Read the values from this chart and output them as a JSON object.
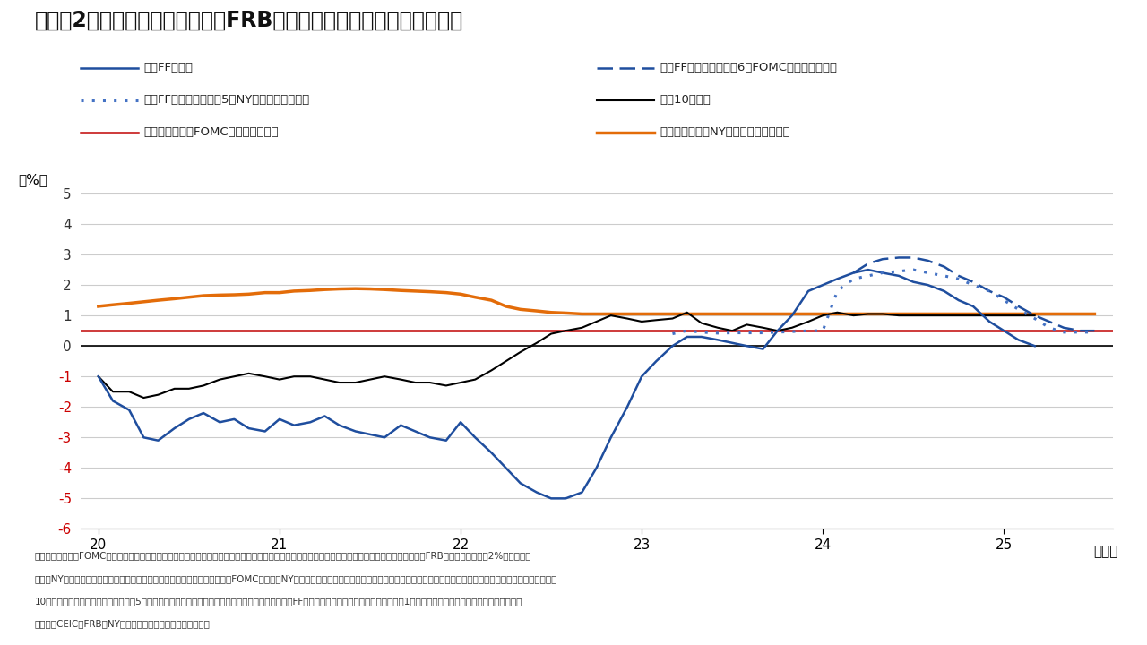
{
  "title": "（図表2）米国：主要長短金利とFRBが見通す中立金利（実質ベース）",
  "ylabel": "（%）",
  "xlabel_year": "（年）",
  "ylim": [
    -6,
    5
  ],
  "xlim": [
    19.9,
    25.6
  ],
  "yticks": [
    -6,
    -5,
    -4,
    -3,
    -2,
    -1,
    0,
    1,
    2,
    3,
    4,
    5
  ],
  "xticks": [
    20,
    21,
    22,
    23,
    24,
    25
  ],
  "note1": "（注）中立金利はFOMC参加者が公表する長期見通しの水準と、直近の見通しが今後も変化しないとの前提を置いた。実質中立金利は、中立金利から、FRBのインフレ目標（2%）を引いた",
  "note2": "計数。NY連銀調査は、プライマリー・ディーラー向けの調査結果に基づく。FOMC参加者やNY連銀調査による見通しで公表されてない期間についてはインベスコが一定の前提を置いて補完した。実質",
  "note3": "10年金利は、ミシガン大学調査による5年先までの期待インフレ率でデフレートして算出した。実質FFレートについては、ミシガン大学による1年先の期待インフレ率を使用して算出した。",
  "note4": "（出所）CEIC、FRB、NY連銀、ブルームバーグ、インベスコ",
  "legend": [
    {
      "label": "実質FFレート",
      "color": "#1f4e9e",
      "linestyle": "solid",
      "lw": 1.8
    },
    {
      "label": "実質FFレート見通し（6月FOMC見通しに準拠）",
      "color": "#1f4e9e",
      "linestyle": "dashed",
      "lw": 1.8
    },
    {
      "label": "実質FFレート見通し（5月NY連銀調査に準拠）",
      "color": "#4472c4",
      "linestyle": "dotted",
      "lw": 2.2
    },
    {
      "label": "実質10年金利",
      "color": "#000000",
      "linestyle": "solid",
      "lw": 1.5
    },
    {
      "label": "実質中立金利（FOMC参加者の見解）",
      "color": "#c00000",
      "linestyle": "solid",
      "lw": 1.8
    },
    {
      "label": "実質中立金利（NY連銀による推計値）",
      "color": "#e36c09",
      "linestyle": "solid",
      "lw": 2.5
    }
  ],
  "real_ff": {
    "x": [
      20.0,
      20.08,
      20.17,
      20.25,
      20.33,
      20.42,
      20.5,
      20.58,
      20.67,
      20.75,
      20.83,
      20.92,
      21.0,
      21.08,
      21.17,
      21.25,
      21.33,
      21.42,
      21.5,
      21.58,
      21.67,
      21.75,
      21.83,
      21.92,
      22.0,
      22.08,
      22.17,
      22.25,
      22.33,
      22.42,
      22.5,
      22.58,
      22.67,
      22.75,
      22.83,
      22.92,
      23.0,
      23.08,
      23.17,
      23.25,
      23.33,
      23.42,
      23.5,
      23.58,
      23.67,
      23.75,
      23.83,
      23.92,
      24.0,
      24.08,
      24.17,
      24.25,
      24.33,
      24.42,
      24.5,
      24.58,
      24.67,
      24.75,
      24.83,
      24.92,
      25.0,
      25.08,
      25.17
    ],
    "y": [
      -1.0,
      -1.8,
      -2.1,
      -3.0,
      -3.1,
      -2.7,
      -2.4,
      -2.2,
      -2.5,
      -2.4,
      -2.7,
      -2.8,
      -2.4,
      -2.6,
      -2.5,
      -2.3,
      -2.6,
      -2.8,
      -2.9,
      -3.0,
      -2.6,
      -2.8,
      -3.0,
      -3.1,
      -2.5,
      -3.0,
      -3.5,
      -4.0,
      -4.5,
      -4.8,
      -5.0,
      -5.0,
      -4.8,
      -4.0,
      -3.0,
      -2.0,
      -1.0,
      -0.5,
      0.0,
      0.3,
      0.3,
      0.2,
      0.1,
      0.0,
      -0.1,
      0.5,
      1.0,
      1.8,
      2.0,
      2.2,
      2.4,
      2.5,
      2.4,
      2.3,
      2.1,
      2.0,
      1.8,
      1.5,
      1.3,
      0.8,
      0.5,
      0.2,
      0.0
    ]
  },
  "real_ff_june_fomc": {
    "x": [
      24.17,
      24.25,
      24.33,
      24.42,
      24.5,
      24.58,
      24.67,
      24.75,
      24.83,
      24.92,
      25.0,
      25.08,
      25.17,
      25.25,
      25.33,
      25.42,
      25.5
    ],
    "y": [
      2.4,
      2.7,
      2.85,
      2.9,
      2.9,
      2.8,
      2.6,
      2.3,
      2.1,
      1.8,
      1.6,
      1.3,
      1.0,
      0.8,
      0.6,
      0.5,
      0.5
    ]
  },
  "real_ff_may_ny": {
    "x": [
      23.17,
      23.25,
      23.33,
      23.42,
      23.5,
      23.58,
      23.67,
      23.75,
      23.83,
      23.92,
      24.0,
      24.08,
      24.17,
      24.25,
      24.33,
      24.42,
      24.5,
      24.58,
      24.67,
      24.75,
      24.83,
      24.92,
      25.0,
      25.08,
      25.17,
      25.25,
      25.33,
      25.42,
      25.5
    ],
    "y": [
      0.4,
      0.5,
      0.45,
      0.42,
      0.43,
      0.43,
      0.43,
      0.45,
      0.47,
      0.5,
      0.5,
      1.8,
      2.2,
      2.3,
      2.4,
      2.45,
      2.5,
      2.4,
      2.3,
      2.2,
      2.0,
      1.8,
      1.5,
      1.2,
      0.9,
      0.6,
      0.45,
      0.45,
      0.45
    ]
  },
  "real_10yr": {
    "x": [
      20.0,
      20.08,
      20.17,
      20.25,
      20.33,
      20.42,
      20.5,
      20.58,
      20.67,
      20.75,
      20.83,
      20.92,
      21.0,
      21.08,
      21.17,
      21.25,
      21.33,
      21.42,
      21.5,
      21.58,
      21.67,
      21.75,
      21.83,
      21.92,
      22.0,
      22.08,
      22.17,
      22.25,
      22.33,
      22.42,
      22.5,
      22.58,
      22.67,
      22.75,
      22.83,
      22.92,
      23.0,
      23.08,
      23.17,
      23.25,
      23.33,
      23.42,
      23.5,
      23.58,
      23.67,
      23.75,
      23.83,
      23.92,
      24.0,
      24.08,
      24.17,
      24.25,
      24.33,
      24.42,
      24.5,
      24.58,
      24.67,
      24.75,
      24.83,
      24.92,
      25.0,
      25.08,
      25.17
    ],
    "y": [
      -1.0,
      -1.5,
      -1.5,
      -1.7,
      -1.6,
      -1.4,
      -1.4,
      -1.3,
      -1.1,
      -1.0,
      -0.9,
      -1.0,
      -1.1,
      -1.0,
      -1.0,
      -1.1,
      -1.2,
      -1.2,
      -1.1,
      -1.0,
      -1.1,
      -1.2,
      -1.2,
      -1.3,
      -1.2,
      -1.1,
      -0.8,
      -0.5,
      -0.2,
      0.1,
      0.4,
      0.5,
      0.6,
      0.8,
      1.0,
      0.9,
      0.8,
      0.85,
      0.9,
      1.1,
      0.75,
      0.6,
      0.5,
      0.7,
      0.6,
      0.5,
      0.6,
      0.8,
      1.0,
      1.1,
      1.0,
      1.05,
      1.05,
      1.0,
      1.0,
      1.0,
      1.0,
      1.0,
      1.0,
      1.0,
      1.0,
      1.0,
      1.0
    ]
  },
  "real_neutral_fomc": {
    "x": [
      19.9,
      25.6
    ],
    "y": [
      0.5,
      0.5
    ]
  },
  "real_neutral_ny": {
    "x": [
      20.0,
      20.08,
      20.17,
      20.25,
      20.33,
      20.42,
      20.5,
      20.58,
      20.67,
      20.75,
      20.83,
      20.92,
      21.0,
      21.08,
      21.17,
      21.25,
      21.33,
      21.42,
      21.5,
      21.58,
      21.67,
      21.75,
      21.83,
      21.92,
      22.0,
      22.08,
      22.17,
      22.25,
      22.33,
      22.42,
      22.5,
      22.58,
      22.67,
      22.75,
      22.83,
      22.92,
      23.0,
      23.08,
      23.17,
      23.25,
      23.33,
      23.42,
      23.5,
      23.58,
      23.67,
      23.75,
      23.83,
      23.92,
      24.0,
      24.08,
      24.17,
      24.25,
      24.33,
      24.42,
      24.5,
      24.58,
      24.67,
      24.75,
      24.83,
      24.92,
      25.0,
      25.08,
      25.17,
      25.25,
      25.33,
      25.42,
      25.5
    ],
    "y": [
      1.3,
      1.35,
      1.4,
      1.45,
      1.5,
      1.55,
      1.6,
      1.65,
      1.67,
      1.68,
      1.7,
      1.75,
      1.75,
      1.8,
      1.82,
      1.85,
      1.87,
      1.88,
      1.87,
      1.85,
      1.82,
      1.8,
      1.78,
      1.75,
      1.7,
      1.6,
      1.5,
      1.3,
      1.2,
      1.15,
      1.1,
      1.08,
      1.05,
      1.05,
      1.05,
      1.05,
      1.05,
      1.05,
      1.05,
      1.05,
      1.05,
      1.05,
      1.05,
      1.05,
      1.05,
      1.05,
      1.05,
      1.05,
      1.05,
      1.05,
      1.05,
      1.05,
      1.05,
      1.05,
      1.05,
      1.05,
      1.05,
      1.05,
      1.05,
      1.05,
      1.05,
      1.05,
      1.05,
      1.05,
      1.05,
      1.05,
      1.05
    ]
  },
  "bg_color": "#ffffff",
  "plot_bg_color": "#ffffff",
  "axis_color": "#333333",
  "grid_color": "#cccccc",
  "zero_line_color": "#000000",
  "neg_label_color": "#cc0000",
  "pos_label_color": "#333333"
}
